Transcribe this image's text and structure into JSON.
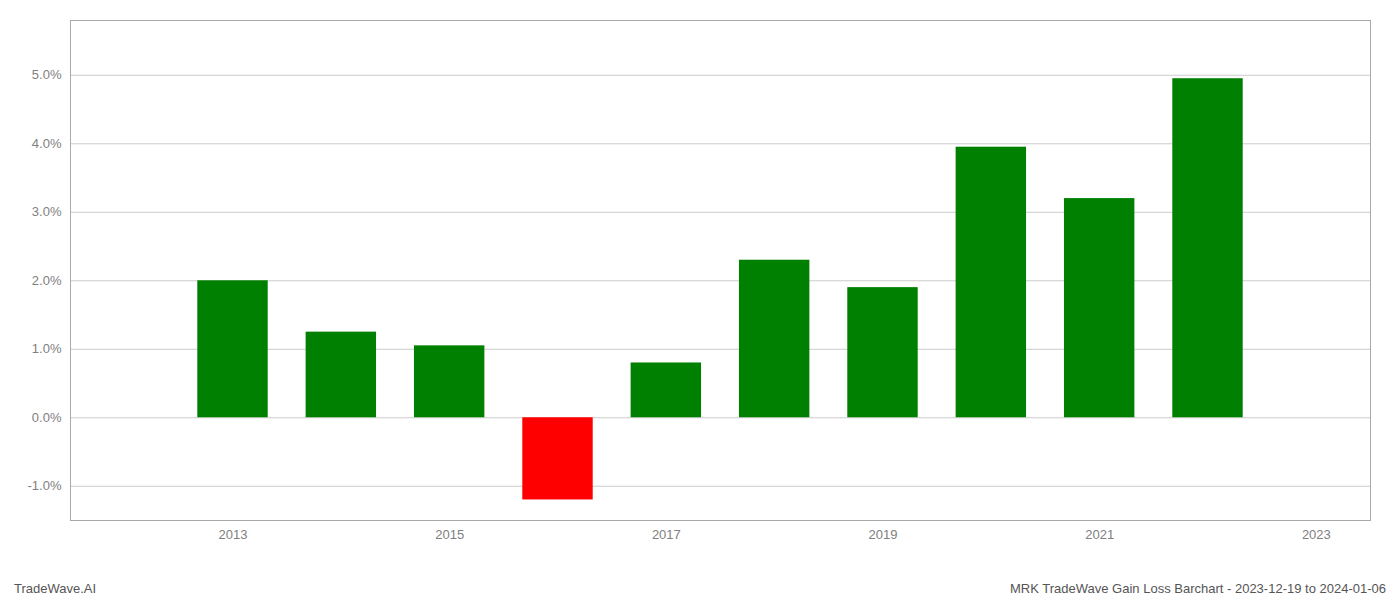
{
  "chart_data": {
    "type": "bar",
    "title": "MRK TradeWave Gain Loss Barchart - 2023-12-19 to 2024-01-06",
    "annotations": [
      "TradeWave.AI"
    ],
    "x": [
      2013,
      2014,
      2015,
      2016,
      2017,
      2018,
      2019,
      2020,
      2021,
      2022
    ],
    "values": [
      0.02,
      0.0125,
      0.0105,
      -0.012,
      0.008,
      0.023,
      0.019,
      0.0395,
      0.032,
      0.0495
    ],
    "colors": [
      "#008000",
      "#008000",
      "#008000",
      "#ff0000",
      "#008000",
      "#008000",
      "#008000",
      "#008000",
      "#008000",
      "#008000"
    ],
    "xlim": [
      2011.5,
      2023.5
    ],
    "xticks": [
      2013,
      2015,
      2017,
      2019,
      2021,
      2023
    ],
    "ylim": [
      -0.015,
      0.058
    ],
    "yticks": [
      {
        "value": -0.01,
        "label": "-1.0%"
      },
      {
        "value": 0.0,
        "label": "0.0%"
      },
      {
        "value": 0.01,
        "label": "1.0%"
      },
      {
        "value": 0.02,
        "label": "2.0%"
      },
      {
        "value": 0.03,
        "label": "3.0%"
      },
      {
        "value": 0.04,
        "label": "4.0%"
      },
      {
        "value": 0.05,
        "label": "5.0%"
      }
    ],
    "grid": true
  }
}
